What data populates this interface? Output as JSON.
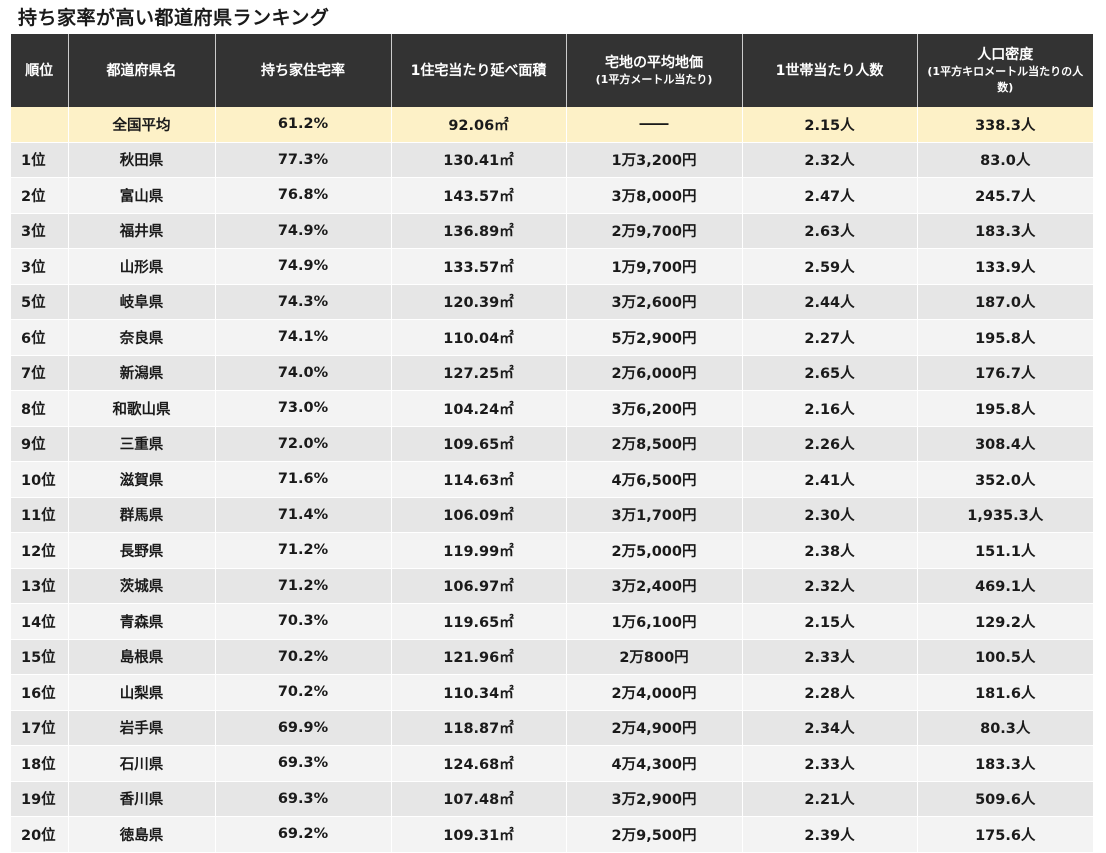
{
  "title": "持ち家率が高い都道府県ランキング",
  "headers": {
    "rank": "順位",
    "pref": "都道府県名",
    "rate": "持ち家住宅率",
    "area": "1住宅当たり延べ面積",
    "price": "宅地の平均地価",
    "price_sub": "(1平方メートル当たり)",
    "household": "1世帯当たり人数",
    "density": "人口密度",
    "density_sub": "(1平方キロメートル当たりの人数)"
  },
  "average": {
    "rank": "",
    "pref": "全国平均",
    "rate": "61.2%",
    "area": "92.06㎡",
    "price": "――",
    "household": "2.15人",
    "density": "338.3人"
  },
  "rows": [
    {
      "rank": "1位",
      "pref": "秋田県",
      "rate": "77.3%",
      "area": "130.41㎡",
      "price": "1万3,200円",
      "household": "2.32人",
      "density": "83.0人"
    },
    {
      "rank": "2位",
      "pref": "富山県",
      "rate": "76.8%",
      "area": "143.57㎡",
      "price": "3万8,000円",
      "household": "2.47人",
      "density": "245.7人"
    },
    {
      "rank": "3位",
      "pref": "福井県",
      "rate": "74.9%",
      "area": "136.89㎡",
      "price": "2万9,700円",
      "household": "2.63人",
      "density": "183.3人"
    },
    {
      "rank": "3位",
      "pref": "山形県",
      "rate": "74.9%",
      "area": "133.57㎡",
      "price": "1万9,700円",
      "household": "2.59人",
      "density": "133.9人"
    },
    {
      "rank": "5位",
      "pref": "岐阜県",
      "rate": "74.3%",
      "area": "120.39㎡",
      "price": "3万2,600円",
      "household": "2.44人",
      "density": "187.0人"
    },
    {
      "rank": "6位",
      "pref": "奈良県",
      "rate": "74.1%",
      "area": "110.04㎡",
      "price": "5万2,900円",
      "household": "2.27人",
      "density": "195.8人"
    },
    {
      "rank": "7位",
      "pref": "新潟県",
      "rate": "74.0%",
      "area": "127.25㎡",
      "price": "2万6,000円",
      "household": "2.65人",
      "density": "176.7人"
    },
    {
      "rank": "8位",
      "pref": "和歌山県",
      "rate": "73.0%",
      "area": "104.24㎡",
      "price": "3万6,200円",
      "household": "2.16人",
      "density": "195.8人"
    },
    {
      "rank": "9位",
      "pref": "三重県",
      "rate": "72.0%",
      "area": "109.65㎡",
      "price": "2万8,500円",
      "household": "2.26人",
      "density": "308.4人"
    },
    {
      "rank": "10位",
      "pref": "滋賀県",
      "rate": "71.6%",
      "area": "114.63㎡",
      "price": "4万6,500円",
      "household": "2.41人",
      "density": "352.0人"
    },
    {
      "rank": "11位",
      "pref": "群馬県",
      "rate": "71.4%",
      "area": "106.09㎡",
      "price": "3万1,700円",
      "household": "2.30人",
      "density": "1,935.3人"
    },
    {
      "rank": "12位",
      "pref": "長野県",
      "rate": "71.2%",
      "area": "119.99㎡",
      "price": "2万5,000円",
      "household": "2.38人",
      "density": "151.1人"
    },
    {
      "rank": "13位",
      "pref": "茨城県",
      "rate": "71.2%",
      "area": "106.97㎡",
      "price": "3万2,400円",
      "household": "2.32人",
      "density": "469.1人"
    },
    {
      "rank": "14位",
      "pref": "青森県",
      "rate": "70.3%",
      "area": "119.65㎡",
      "price": "1万6,100円",
      "household": "2.15人",
      "density": "129.2人"
    },
    {
      "rank": "15位",
      "pref": "島根県",
      "rate": "70.2%",
      "area": "121.96㎡",
      "price": "2万800円",
      "household": "2.33人",
      "density": "100.5人"
    },
    {
      "rank": "16位",
      "pref": "山梨県",
      "rate": "70.2%",
      "area": "110.34㎡",
      "price": "2万4,000円",
      "household": "2.28人",
      "density": "181.6人"
    },
    {
      "rank": "17位",
      "pref": "岩手県",
      "rate": "69.9%",
      "area": "118.87㎡",
      "price": "2万4,900円",
      "household": "2.34人",
      "density": "80.3人"
    },
    {
      "rank": "18位",
      "pref": "石川県",
      "rate": "69.3%",
      "area": "124.68㎡",
      "price": "4万4,300円",
      "household": "2.33人",
      "density": "183.3人"
    },
    {
      "rank": "19位",
      "pref": "香川県",
      "rate": "69.3%",
      "area": "107.48㎡",
      "price": "3万2,900円",
      "household": "2.21人",
      "density": "509.6人"
    },
    {
      "rank": "20位",
      "pref": "徳島県",
      "rate": "69.2%",
      "area": "109.31㎡",
      "price": "2万9,500円",
      "household": "2.39人",
      "density": "175.6人"
    }
  ]
}
